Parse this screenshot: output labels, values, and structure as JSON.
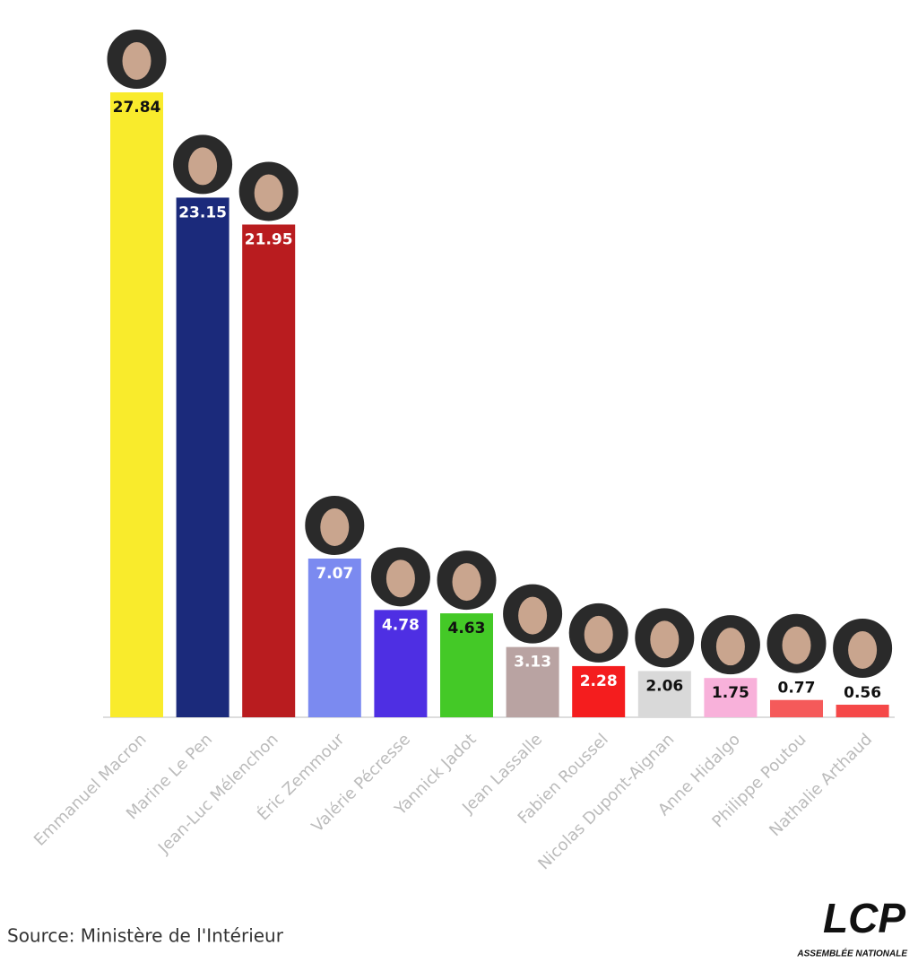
{
  "chart_data": {
    "type": "bar",
    "categories": [
      "Emmanuel Macron",
      "Marine Le Pen",
      "Jean-Luc Mélenchon",
      "Éric Zemmour",
      "Valérie Pécresse",
      "Yannick Jadot",
      "Jean Lassalle",
      "Fabien Roussel",
      "Nicolas Dupont-Aignan",
      "Anne Hidalgo",
      "Philippe Poutou",
      "Nathalie Arthaud"
    ],
    "values": [
      27.84,
      23.15,
      21.95,
      7.07,
      4.78,
      4.63,
      3.13,
      2.28,
      2.06,
      1.75,
      0.77,
      0.56
    ],
    "colors": [
      "#f9eb2c",
      "#1b2a7b",
      "#b91c1f",
      "#7b8af0",
      "#4e2fe3",
      "#44c927",
      "#b9a3a2",
      "#f41d1e",
      "#d9d9d9",
      "#f8b1da",
      "#f55a5a",
      "#f54848"
    ],
    "label_colors": [
      "#111111",
      "#ffffff",
      "#ffffff",
      "#ffffff",
      "#ffffff",
      "#111111",
      "#ffffff",
      "#ffffff",
      "#111111",
      "#111111",
      "#111111",
      "#111111"
    ],
    "source": "Source: Ministère de l'Intérieur",
    "logo": {
      "name": "LCP",
      "subtitle": "ASSEMBLÉE NATIONALE"
    }
  }
}
